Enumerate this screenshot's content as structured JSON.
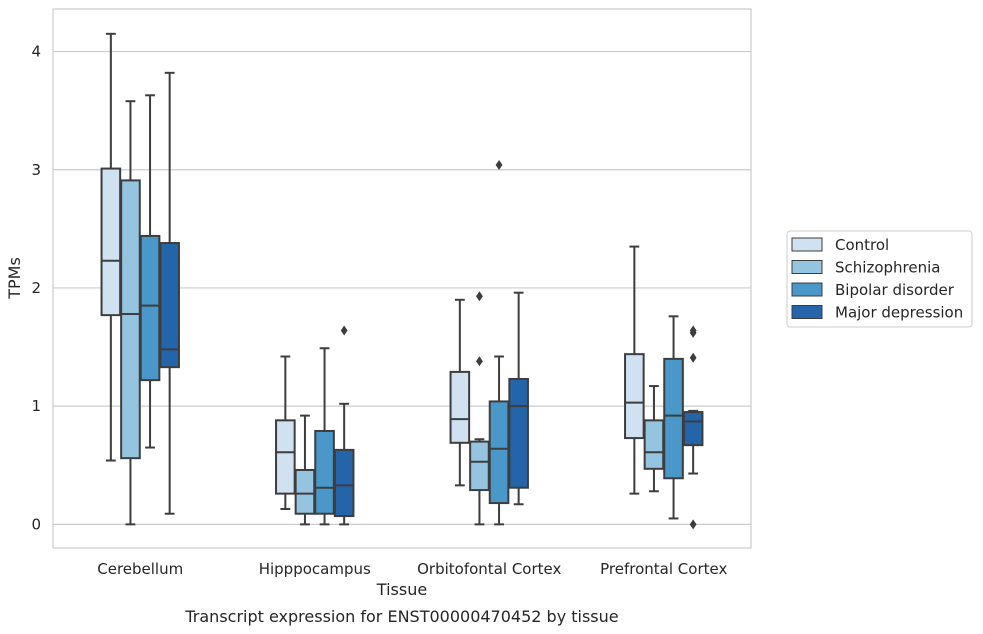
{
  "caption": "Transcript expression for ENST00000470452 by tissue",
  "chart_data": {
    "type": "boxplot",
    "xlabel": "Tissue",
    "ylabel": "TPMs",
    "ylim": [
      -0.2,
      4.36
    ],
    "yticks": [
      0,
      1,
      2,
      3,
      4
    ],
    "grid": "horizontal",
    "legend_position": "right",
    "categories": [
      "Cerebellum",
      "Hipppocampus",
      "Orbitofontal Cortex",
      "Prefrontal Cortex"
    ],
    "series": [
      {
        "name": "Control",
        "color": "#d0e1f2",
        "boxes": [
          {
            "whislo": 0.54,
            "q1": 1.77,
            "med": 2.23,
            "q3": 3.01,
            "whishi": 4.15,
            "fliers": []
          },
          {
            "whislo": 0.13,
            "q1": 0.26,
            "med": 0.61,
            "q3": 0.88,
            "whishi": 1.42,
            "fliers": []
          },
          {
            "whislo": 0.33,
            "q1": 0.69,
            "med": 0.89,
            "q3": 1.29,
            "whishi": 1.9,
            "fliers": []
          },
          {
            "whislo": 0.26,
            "q1": 0.73,
            "med": 1.03,
            "q3": 1.44,
            "whishi": 2.35,
            "fliers": []
          }
        ]
      },
      {
        "name": "Schizophrenia",
        "color": "#94c4df",
        "boxes": [
          {
            "whislo": 0.0,
            "q1": 0.56,
            "med": 1.78,
            "q3": 2.91,
            "whishi": 3.58,
            "fliers": []
          },
          {
            "whislo": 0.0,
            "q1": 0.09,
            "med": 0.26,
            "q3": 0.46,
            "whishi": 0.92,
            "fliers": []
          },
          {
            "whislo": 0.0,
            "q1": 0.29,
            "med": 0.53,
            "q3": 0.7,
            "whishi": 0.72,
            "fliers": [
              1.38,
              1.93
            ]
          },
          {
            "whislo": 0.28,
            "q1": 0.47,
            "med": 0.61,
            "q3": 0.88,
            "whishi": 1.17,
            "fliers": []
          }
        ]
      },
      {
        "name": "Bipolar disorder",
        "color": "#4a98c9",
        "boxes": [
          {
            "whislo": 0.65,
            "q1": 1.22,
            "med": 1.85,
            "q3": 2.44,
            "whishi": 3.63,
            "fliers": []
          },
          {
            "whislo": 0.0,
            "q1": 0.09,
            "med": 0.31,
            "q3": 0.79,
            "whishi": 1.49,
            "fliers": []
          },
          {
            "whislo": 0.0,
            "q1": 0.18,
            "med": 0.64,
            "q3": 1.04,
            "whishi": 1.42,
            "fliers": [
              3.04
            ]
          },
          {
            "whislo": 0.05,
            "q1": 0.39,
            "med": 0.92,
            "q3": 1.4,
            "whishi": 1.76,
            "fliers": []
          }
        ]
      },
      {
        "name": "Major depression",
        "color": "#2465a9",
        "boxes": [
          {
            "whislo": 0.09,
            "q1": 1.33,
            "med": 1.48,
            "q3": 2.38,
            "whishi": 3.82,
            "fliers": []
          },
          {
            "whislo": 0.0,
            "q1": 0.07,
            "med": 0.33,
            "q3": 0.63,
            "whishi": 1.02,
            "fliers": [
              1.64
            ]
          },
          {
            "whislo": 0.17,
            "q1": 0.31,
            "med": 1.0,
            "q3": 1.23,
            "whishi": 1.96,
            "fliers": []
          },
          {
            "whislo": 0.43,
            "q1": 0.67,
            "med": 0.87,
            "q3": 0.95,
            "whishi": 0.96,
            "fliers": [
              0.0,
              1.41,
              1.62,
              1.64
            ]
          }
        ]
      }
    ]
  }
}
